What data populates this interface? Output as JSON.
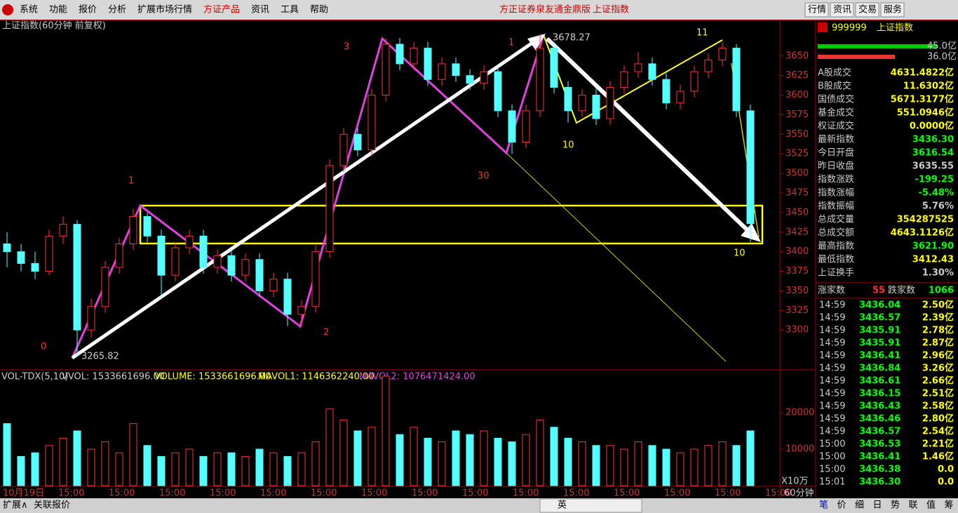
{
  "menu": {
    "items": [
      "系统",
      "功能",
      "报价",
      "分析",
      "扩展市场行情",
      "方证产品",
      "资讯",
      "工具",
      "帮助"
    ],
    "center_title": "方正证券泉友通金鼎版",
    "center_index": "上证指数",
    "buttons": [
      "行情",
      "资讯",
      "交易",
      "服务"
    ]
  },
  "chart_data": {
    "type": "candlestick",
    "title": "上证指数(60分钟 前复权)",
    "ylim": [
      3250,
      3700
    ],
    "yticks": [
      3300,
      3325,
      3350,
      3375,
      3400,
      3425,
      3450,
      3475,
      3500,
      3525,
      3550,
      3575,
      3600,
      3625,
      3650
    ],
    "candles": [
      [
        3410,
        3425,
        3380,
        3400
      ],
      [
        3400,
        3410,
        3375,
        3385
      ],
      [
        3385,
        3400,
        3365,
        3375
      ],
      [
        3375,
        3428,
        3370,
        3420
      ],
      [
        3420,
        3445,
        3410,
        3435
      ],
      [
        3435,
        3440,
        3265.82,
        3300
      ],
      [
        3300,
        3340,
        3290,
        3330
      ],
      [
        3330,
        3388,
        3322,
        3380
      ],
      [
        3380,
        3418,
        3372,
        3410
      ],
      [
        3410,
        3455,
        3402,
        3445
      ],
      [
        3445,
        3450,
        3412,
        3420
      ],
      [
        3420,
        3428,
        3340,
        3370
      ],
      [
        3370,
        3412,
        3362,
        3405
      ],
      [
        3405,
        3428,
        3397,
        3420
      ],
      [
        3420,
        3428,
        3372,
        3380
      ],
      [
        3380,
        3403,
        3372,
        3395
      ],
      [
        3395,
        3403,
        3362,
        3370
      ],
      [
        3370,
        3398,
        3362,
        3390
      ],
      [
        3390,
        3398,
        3342,
        3350
      ],
      [
        3350,
        3373,
        3342,
        3365
      ],
      [
        3365,
        3373,
        3305,
        3320
      ],
      [
        3320,
        3338,
        3305,
        3330
      ],
      [
        3330,
        3408,
        3322,
        3400
      ],
      [
        3400,
        3518,
        3392,
        3510
      ],
      [
        3510,
        3558,
        3502,
        3550
      ],
      [
        3550,
        3558,
        3522,
        3530
      ],
      [
        3530,
        3608,
        3522,
        3600
      ],
      [
        3600,
        3673,
        3592,
        3665
      ],
      [
        3665,
        3673,
        3632,
        3640
      ],
      [
        3640,
        3668,
        3632,
        3660
      ],
      [
        3660,
        3668,
        3612,
        3620
      ],
      [
        3620,
        3648,
        3612,
        3640
      ],
      [
        3640,
        3648,
        3617,
        3625
      ],
      [
        3625,
        3633,
        3607,
        3615
      ],
      [
        3615,
        3638,
        3607,
        3630
      ],
      [
        3630,
        3638,
        3572,
        3580
      ],
      [
        3580,
        3588,
        3525,
        3540
      ],
      [
        3540,
        3588,
        3532,
        3580
      ],
      [
        3580,
        3678.27,
        3572,
        3660
      ],
      [
        3660,
        3668,
        3602,
        3610
      ],
      [
        3610,
        3618,
        3565,
        3580
      ],
      [
        3580,
        3608,
        3572,
        3600
      ],
      [
        3600,
        3608,
        3562,
        3570
      ],
      [
        3570,
        3618,
        3562,
        3610
      ],
      [
        3610,
        3638,
        3602,
        3630
      ],
      [
        3630,
        3655,
        3622,
        3640
      ],
      [
        3640,
        3648,
        3612,
        3620
      ],
      [
        3620,
        3628,
        3582,
        3590
      ],
      [
        3590,
        3613,
        3582,
        3605
      ],
      [
        3605,
        3638,
        3597,
        3630
      ],
      [
        3630,
        3653,
        3622,
        3645
      ],
      [
        3645,
        3668,
        3637,
        3660
      ],
      [
        3660,
        3665,
        3572,
        3580
      ],
      [
        3580,
        3588,
        3412.43,
        3436
      ]
    ],
    "low_label": "3265.82",
    "high_label": "3678.27",
    "annotations": [
      "0",
      "1",
      "2",
      "3",
      "30",
      "1",
      "10",
      "11",
      "10"
    ],
    "x_labels": [
      "10月19日",
      "15:00",
      "15:00",
      "15:00",
      "15:00",
      "15:00",
      "15:00",
      "15:00",
      "15:00",
      "15:00",
      "15:00",
      "15:00",
      "15:00",
      "15:00",
      "15:00",
      "15:00"
    ],
    "volume": {
      "header": "VOL-TDX(5,10)",
      "vvol": "VVOL: 1533661696.00",
      "volume": "VOLUME: 1533661696.00",
      "mavol1": "MAVOL1: 1146362240.00",
      "mavol2": "MAVOL2: 1076471424.00",
      "ylim": [
        0,
        30000
      ],
      "yticks": [
        10000,
        20000
      ],
      "values": [
        17000,
        8000,
        9000,
        11000,
        13000,
        15000,
        10000,
        12000,
        9000,
        17000,
        11000,
        8000,
        9000,
        10000,
        8000,
        9000,
        9000,
        8000,
        10000,
        9000,
        8000,
        9000,
        12000,
        21000,
        18000,
        15000,
        16000,
        30000,
        14000,
        16000,
        13000,
        12000,
        15000,
        14000,
        15000,
        13000,
        12000,
        14000,
        18000,
        16000,
        13000,
        12000,
        11000,
        11000,
        10000,
        12000,
        11000,
        10000,
        9000,
        10000,
        11000,
        12000,
        11000,
        15000
      ],
      "unit": "X10万"
    },
    "period": "60分钟"
  },
  "side": {
    "code": "999999",
    "name": "上证指数",
    "bar1": "45.0亿",
    "bar2": "36.0亿",
    "rows": [
      [
        "A股成交",
        "4631.4822亿"
      ],
      [
        "B股成交",
        "11.6302亿"
      ],
      [
        "国债成交",
        "5671.3177亿"
      ],
      [
        "基金成交",
        "551.0946亿"
      ],
      [
        "权证成交",
        "0.0000亿"
      ],
      [
        "最新指数",
        "3436.30"
      ],
      [
        "今日开盘",
        "3616.54"
      ],
      [
        "昨日收盘",
        "3635.55"
      ],
      [
        "指数涨跌",
        "-199.25"
      ],
      [
        "指数涨幅",
        "-5.48%"
      ],
      [
        "指数振幅",
        "5.76%"
      ],
      [
        "总成交量",
        "354287525"
      ],
      [
        "总成交额",
        "4643.1126亿"
      ],
      [
        "最高指数",
        "3621.90"
      ],
      [
        "最低指数",
        "3412.43"
      ],
      [
        "上证换手",
        "1.30%"
      ]
    ],
    "up_label": "涨家数",
    "up": "55",
    "down_label": "跌家数",
    "down": "1066",
    "ticks": [
      [
        "14:59",
        "3436.04",
        "2.50亿"
      ],
      [
        "14:59",
        "3436.57",
        "2.39亿"
      ],
      [
        "14:59",
        "3435.91",
        "2.78亿"
      ],
      [
        "14:59",
        "3435.91",
        "2.87亿"
      ],
      [
        "14:59",
        "3436.41",
        "2.96亿"
      ],
      [
        "14:59",
        "3436.84",
        "3.26亿"
      ],
      [
        "14:59",
        "3436.61",
        "2.66亿"
      ],
      [
        "14:59",
        "3436.15",
        "2.51亿"
      ],
      [
        "14:59",
        "3436.43",
        "2.58亿"
      ],
      [
        "14:59",
        "3436.46",
        "2.80亿"
      ],
      [
        "14:59",
        "3436.57",
        "2.54亿"
      ],
      [
        "15:00",
        "3436.53",
        "2.21亿"
      ],
      [
        "15:00",
        "3436.41",
        "1.46亿"
      ],
      [
        "15:00",
        "3436.38",
        "0.0"
      ],
      [
        "15:01",
        "3436.30",
        "0.0"
      ]
    ],
    "tabs": [
      "笔",
      "价",
      "细",
      "日",
      "势",
      "联",
      "值",
      "筹"
    ]
  },
  "bottom": {
    "tabs": [
      "扩展∧",
      "关联报价"
    ],
    "ime": "英"
  }
}
